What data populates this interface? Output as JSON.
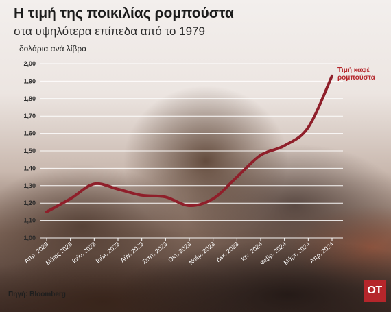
{
  "header": {
    "title": "Η τιμή της ποικιλίας ρομπούστα",
    "subtitle": "στα υψηλότερα επίπεδα από το 1979",
    "unit": "δολάρια ανά λίβρα"
  },
  "source": "Πηγή: Bloomberg",
  "logo_text": "OT",
  "colors": {
    "line": "#8f1f2a",
    "label": "#b5262b",
    "grid": "#ffffff"
  },
  "chart_data": {
    "type": "line",
    "categories": [
      "Απρ. 2023",
      "Μάιος 2023",
      "Ιούν. 2023",
      "Ιούλ. 2023",
      "Αύγ. 2023",
      "Σεπτ. 2023",
      "Οκτ. 2023",
      "Νοέμ. 2023",
      "Δεκ. 2023",
      "Ιαν. 2024",
      "Φεβρ. 2024",
      "Μάρτ. 2024",
      "Απρ. 2024"
    ],
    "yticks": [
      "2,00",
      "1,90",
      "1,80",
      "1,70",
      "1,60",
      "1,50",
      "1,40",
      "1,30",
      "1,20",
      "1,10",
      "1,00"
    ],
    "ylim": [
      1.0,
      2.0
    ],
    "grid": true,
    "series": [
      {
        "name": "Τιμή καφέ ρομπούστα",
        "name_lines": [
          "Τιμή καφέ",
          "ρομπούστα"
        ],
        "values": [
          1.15,
          1.225,
          1.31,
          1.28,
          1.245,
          1.235,
          1.185,
          1.225,
          1.35,
          1.475,
          1.53,
          1.635,
          1.93
        ]
      }
    ]
  }
}
